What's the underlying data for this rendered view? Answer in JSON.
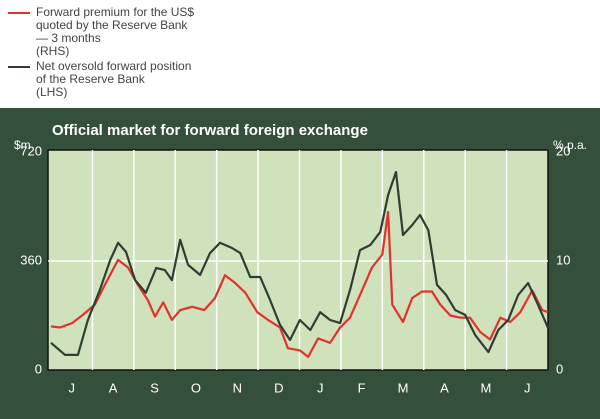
{
  "chart_data": {
    "type": "line",
    "title": "Official market for forward foreign exchange",
    "y_label": "$m",
    "y2_label": "% p.a.",
    "categories": [
      "J",
      "A",
      "S",
      "O",
      "N",
      "D",
      "J",
      "F",
      "M",
      "A",
      "M",
      "J"
    ],
    "xlim": [
      0,
      12
    ],
    "ylim": [
      0,
      720
    ],
    "yticks": [
      0,
      360,
      720
    ],
    "y2lim": [
      0,
      20
    ],
    "y2ticks": [
      0,
      10,
      20
    ],
    "grid": true,
    "legend": "top-left",
    "series": [
      {
        "name": "Forward premium for the US$\nquoted by the Reserve Bank\n— 3 months\n(RHS)",
        "color": "#e2322e",
        "axis": "y2",
        "x": [
          0,
          0.22,
          0.51,
          0.75,
          1.06,
          1.3,
          1.62,
          1.86,
          2.1,
          2.34,
          2.51,
          2.71,
          2.92,
          3.12,
          3.41,
          3.7,
          3.96,
          4.2,
          4.44,
          4.69,
          4.98,
          5.24,
          5.53,
          5.72,
          6.01,
          6.21,
          6.45,
          6.74,
          6.98,
          7.22,
          7.51,
          7.75,
          8.0,
          8.14,
          8.24,
          8.5,
          8.72,
          8.96,
          9.2,
          9.4,
          9.64,
          9.88,
          10.12,
          10.36,
          10.6,
          10.85,
          11.09,
          11.33,
          11.62,
          11.86,
          12
        ],
        "values": [
          4.0,
          3.9,
          4.3,
          5.0,
          6.0,
          7.8,
          10.1,
          9.4,
          7.8,
          6.4,
          4.9,
          6.2,
          4.6,
          5.5,
          5.8,
          5.5,
          6.6,
          8.7,
          8.0,
          7.1,
          5.3,
          4.6,
          3.9,
          2.0,
          1.8,
          1.2,
          2.9,
          2.5,
          3.9,
          4.8,
          7.3,
          9.4,
          10.6,
          14.5,
          6.0,
          4.4,
          6.6,
          7.2,
          7.2,
          6.0,
          5.0,
          4.8,
          4.8,
          3.5,
          2.8,
          4.8,
          4.4,
          5.3,
          7.3,
          5.5,
          5.3
        ]
      },
      {
        "name": "Net oversold forward position\nof the Reserve Bank\n(LHS)",
        "color": "#2f3d33",
        "x": [
          0,
          0.34,
          0.65,
          0.89,
          1.18,
          1.43,
          1.62,
          1.81,
          2.03,
          2.29,
          2.54,
          2.75,
          2.92,
          3.12,
          3.31,
          3.6,
          3.84,
          4.08,
          4.37,
          4.57,
          4.81,
          5.05,
          5.29,
          5.53,
          5.77,
          6.01,
          6.26,
          6.5,
          6.74,
          6.98,
          7.22,
          7.46,
          7.71,
          7.95,
          8.14,
          8.33,
          8.5,
          8.72,
          8.91,
          9.11,
          9.32,
          9.54,
          9.76,
          10.0,
          10.24,
          10.56,
          10.8,
          11.04,
          11.28,
          11.52,
          11.76,
          12
        ],
        "values": [
          90,
          50,
          50,
          165,
          265,
          363,
          420,
          390,
          297,
          255,
          337,
          330,
          297,
          430,
          347,
          314,
          386,
          420,
          403,
          386,
          307,
          307,
          231,
          149,
          99,
          165,
          132,
          191,
          165,
          155,
          264,
          396,
          413,
          456,
          578,
          654,
          446,
          479,
          512,
          462,
          281,
          248,
          198,
          182,
          116,
          59,
          132,
          165,
          248,
          287,
          215,
          139
        ]
      }
    ]
  }
}
